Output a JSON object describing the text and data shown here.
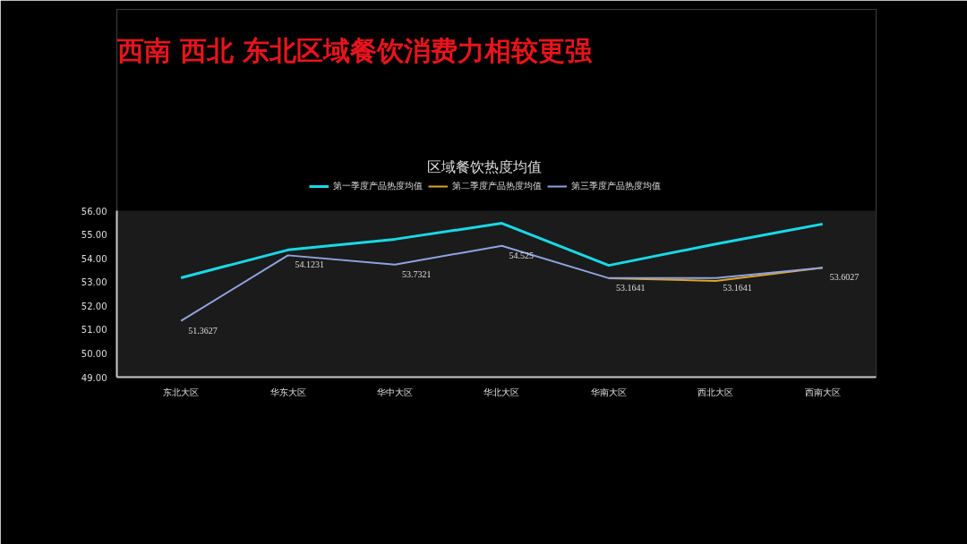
{
  "chart_data": {
    "type": "line",
    "title": "西南  西北  东北区域餐饮消费力相较更强",
    "subtitle": "区域餐饮热度均值",
    "categories": [
      "东北大区",
      "华东大区",
      "华中大区",
      "华北大区",
      "华南大区",
      "西北大区",
      "西南大区"
    ],
    "series": [
      {
        "name": "第一季度产品热度均值",
        "color": "#19d9e6",
        "values": [
          53.18,
          54.35,
          54.8,
          55.47,
          53.7,
          54.6,
          55.44
        ]
      },
      {
        "name": "第二季度产品热度均值",
        "color": "#e0a52a",
        "values": [
          null,
          null,
          null,
          null,
          53.16,
          53.05,
          53.6
        ]
      },
      {
        "name": "第三季度产品热度均值",
        "color": "#8fa3e0",
        "values": [
          51.3627,
          54.1231,
          53.7321,
          54.525,
          53.1641,
          53.1641,
          53.6027
        ],
        "value_labels": [
          "51.3627",
          "54.1231",
          "53.7321",
          "54.525",
          "53.1641",
          "53.1641",
          "53.6027"
        ]
      }
    ],
    "ylim": [
      49,
      56
    ],
    "yticks": [
      {
        "value": 49,
        "label": "49.00"
      },
      {
        "value": 50,
        "label": "50.00"
      },
      {
        "value": 51,
        "label": "51.00"
      },
      {
        "value": 52,
        "label": "52.00"
      },
      {
        "value": 53,
        "label": "53.00"
      },
      {
        "value": 54,
        "label": "54.00"
      },
      {
        "value": 55,
        "label": "55.00"
      },
      {
        "value": 56,
        "label": "56.00"
      }
    ],
    "grid": false,
    "legend": "top",
    "marker": "none",
    "line_style": "solid"
  }
}
